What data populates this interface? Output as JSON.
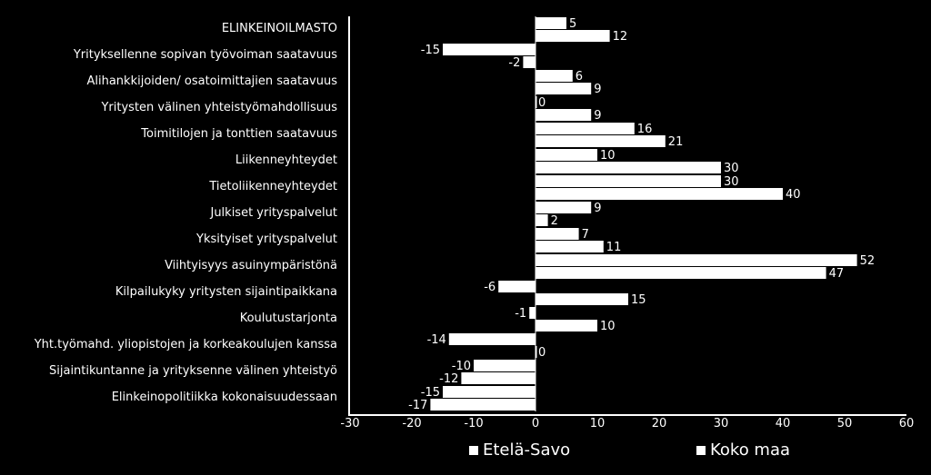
{
  "chart_data": {
    "type": "bar",
    "orientation": "horizontal",
    "categories": [
      "ELINKEINOILMASTO",
      "Yrityksellenne sopivan työvoiman saatavuus",
      "Alihankkijoiden/ osatoimittajien saatavuus",
      "Yritysten välinen yhteistyömahdollisuus",
      "Toimitilojen ja tonttien saatavuus",
      "Liikenneyhteydet",
      "Tietoliikenneyhteydet",
      "Julkiset yrityspalvelut",
      "Yksityiset yrityspalvelut",
      "Viihtyisyys asuinympäristönä",
      "Kilpailukyky yritysten sijaintipaikkana",
      "Koulutustarjonta",
      "Yht.työmahd. yliopistojen ja korkeakoulujen kanssa",
      "Sijaintikuntanne ja yrityksenne välinen yhteistyö",
      "Elinkeinopolitiikka kokonaisuudessaan"
    ],
    "series": [
      {
        "name": "Etelä-Savo",
        "values": [
          5,
          -15,
          6,
          0,
          16,
          10,
          30,
          9,
          7,
          52,
          -6,
          -1,
          -14,
          -10,
          -15
        ]
      },
      {
        "name": "Koko maa",
        "values": [
          12,
          -2,
          9,
          9,
          21,
          30,
          40,
          2,
          11,
          47,
          15,
          10,
          0,
          -12,
          -17
        ]
      }
    ],
    "xlim": [
      -30,
      60
    ],
    "xticks": [
      "-30",
      "-20",
      "-10",
      "0",
      "10",
      "20",
      "30",
      "40",
      "50",
      "60"
    ],
    "grid": false,
    "legend": "bottom",
    "colors": {
      "background": "#000000",
      "bars": "#ffffff",
      "text": "#ffffff"
    }
  }
}
